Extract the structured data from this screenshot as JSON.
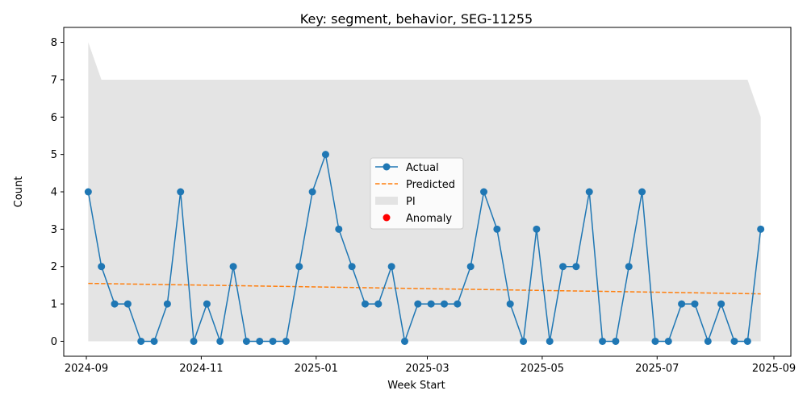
{
  "chart_data": {
    "type": "line",
    "title": "Key: segment, behavior, SEG-11255",
    "xlabel": "Week Start",
    "ylabel": "Count",
    "xlim": [
      "2024-08-20",
      "2025-09-10"
    ],
    "ylim": [
      -0.4,
      8.4
    ],
    "x_ticks": [
      "2024-09",
      "2024-11",
      "2025-01",
      "2025-03",
      "2025-05",
      "2025-07",
      "2025-09"
    ],
    "x_tick_dates": [
      "2024-09-01",
      "2024-11-01",
      "2025-01-01",
      "2025-03-01",
      "2025-05-01",
      "2025-07-01",
      "2025-09-01"
    ],
    "y_ticks": [
      0,
      1,
      2,
      3,
      4,
      5,
      6,
      7,
      8
    ],
    "legend_position": "center",
    "dates": [
      "2024-09-02",
      "2024-09-09",
      "2024-09-16",
      "2024-09-23",
      "2024-09-30",
      "2024-10-07",
      "2024-10-14",
      "2024-10-21",
      "2024-10-28",
      "2024-11-04",
      "2024-11-11",
      "2024-11-18",
      "2024-11-25",
      "2024-12-02",
      "2024-12-09",
      "2024-12-16",
      "2024-12-23",
      "2024-12-30",
      "2025-01-06",
      "2025-01-13",
      "2025-01-20",
      "2025-01-27",
      "2025-02-03",
      "2025-02-10",
      "2025-02-17",
      "2025-02-24",
      "2025-03-03",
      "2025-03-10",
      "2025-03-17",
      "2025-03-24",
      "2025-03-31",
      "2025-04-07",
      "2025-04-14",
      "2025-04-21",
      "2025-04-28",
      "2025-05-05",
      "2025-05-12",
      "2025-05-19",
      "2025-05-26",
      "2025-06-02",
      "2025-06-09",
      "2025-06-16",
      "2025-06-23",
      "2025-06-30",
      "2025-07-07",
      "2025-07-14",
      "2025-07-21",
      "2025-07-28",
      "2025-08-04",
      "2025-08-11",
      "2025-08-18",
      "2025-08-25"
    ],
    "series": [
      {
        "name": "Actual",
        "type": "line-marker",
        "color": "#1f77b4",
        "values": [
          4,
          2,
          1,
          1,
          0,
          0,
          1,
          4,
          0,
          1,
          0,
          2,
          0,
          0,
          0,
          0,
          2,
          4,
          5,
          3,
          2,
          1,
          1,
          2,
          0,
          1,
          1,
          1,
          1,
          2,
          4,
          3,
          1,
          0,
          3,
          0,
          2,
          2,
          4,
          0,
          0,
          2,
          4,
          0,
          0,
          1,
          1,
          0,
          1,
          0,
          0,
          3
        ]
      },
      {
        "name": "Predicted",
        "type": "dashed-line",
        "color": "#ff7f0e",
        "start": 1.55,
        "end": 1.27
      },
      {
        "name": "PI",
        "type": "band",
        "color": "#d9d9d9",
        "lower": 0,
        "upper_points": [
          [
            "2024-09-02",
            8
          ],
          [
            "2024-09-09",
            7
          ],
          [
            "2025-08-18",
            7
          ],
          [
            "2025-08-25",
            6
          ]
        ]
      },
      {
        "name": "Anomaly",
        "type": "scatter",
        "color": "red",
        "values": []
      }
    ]
  }
}
